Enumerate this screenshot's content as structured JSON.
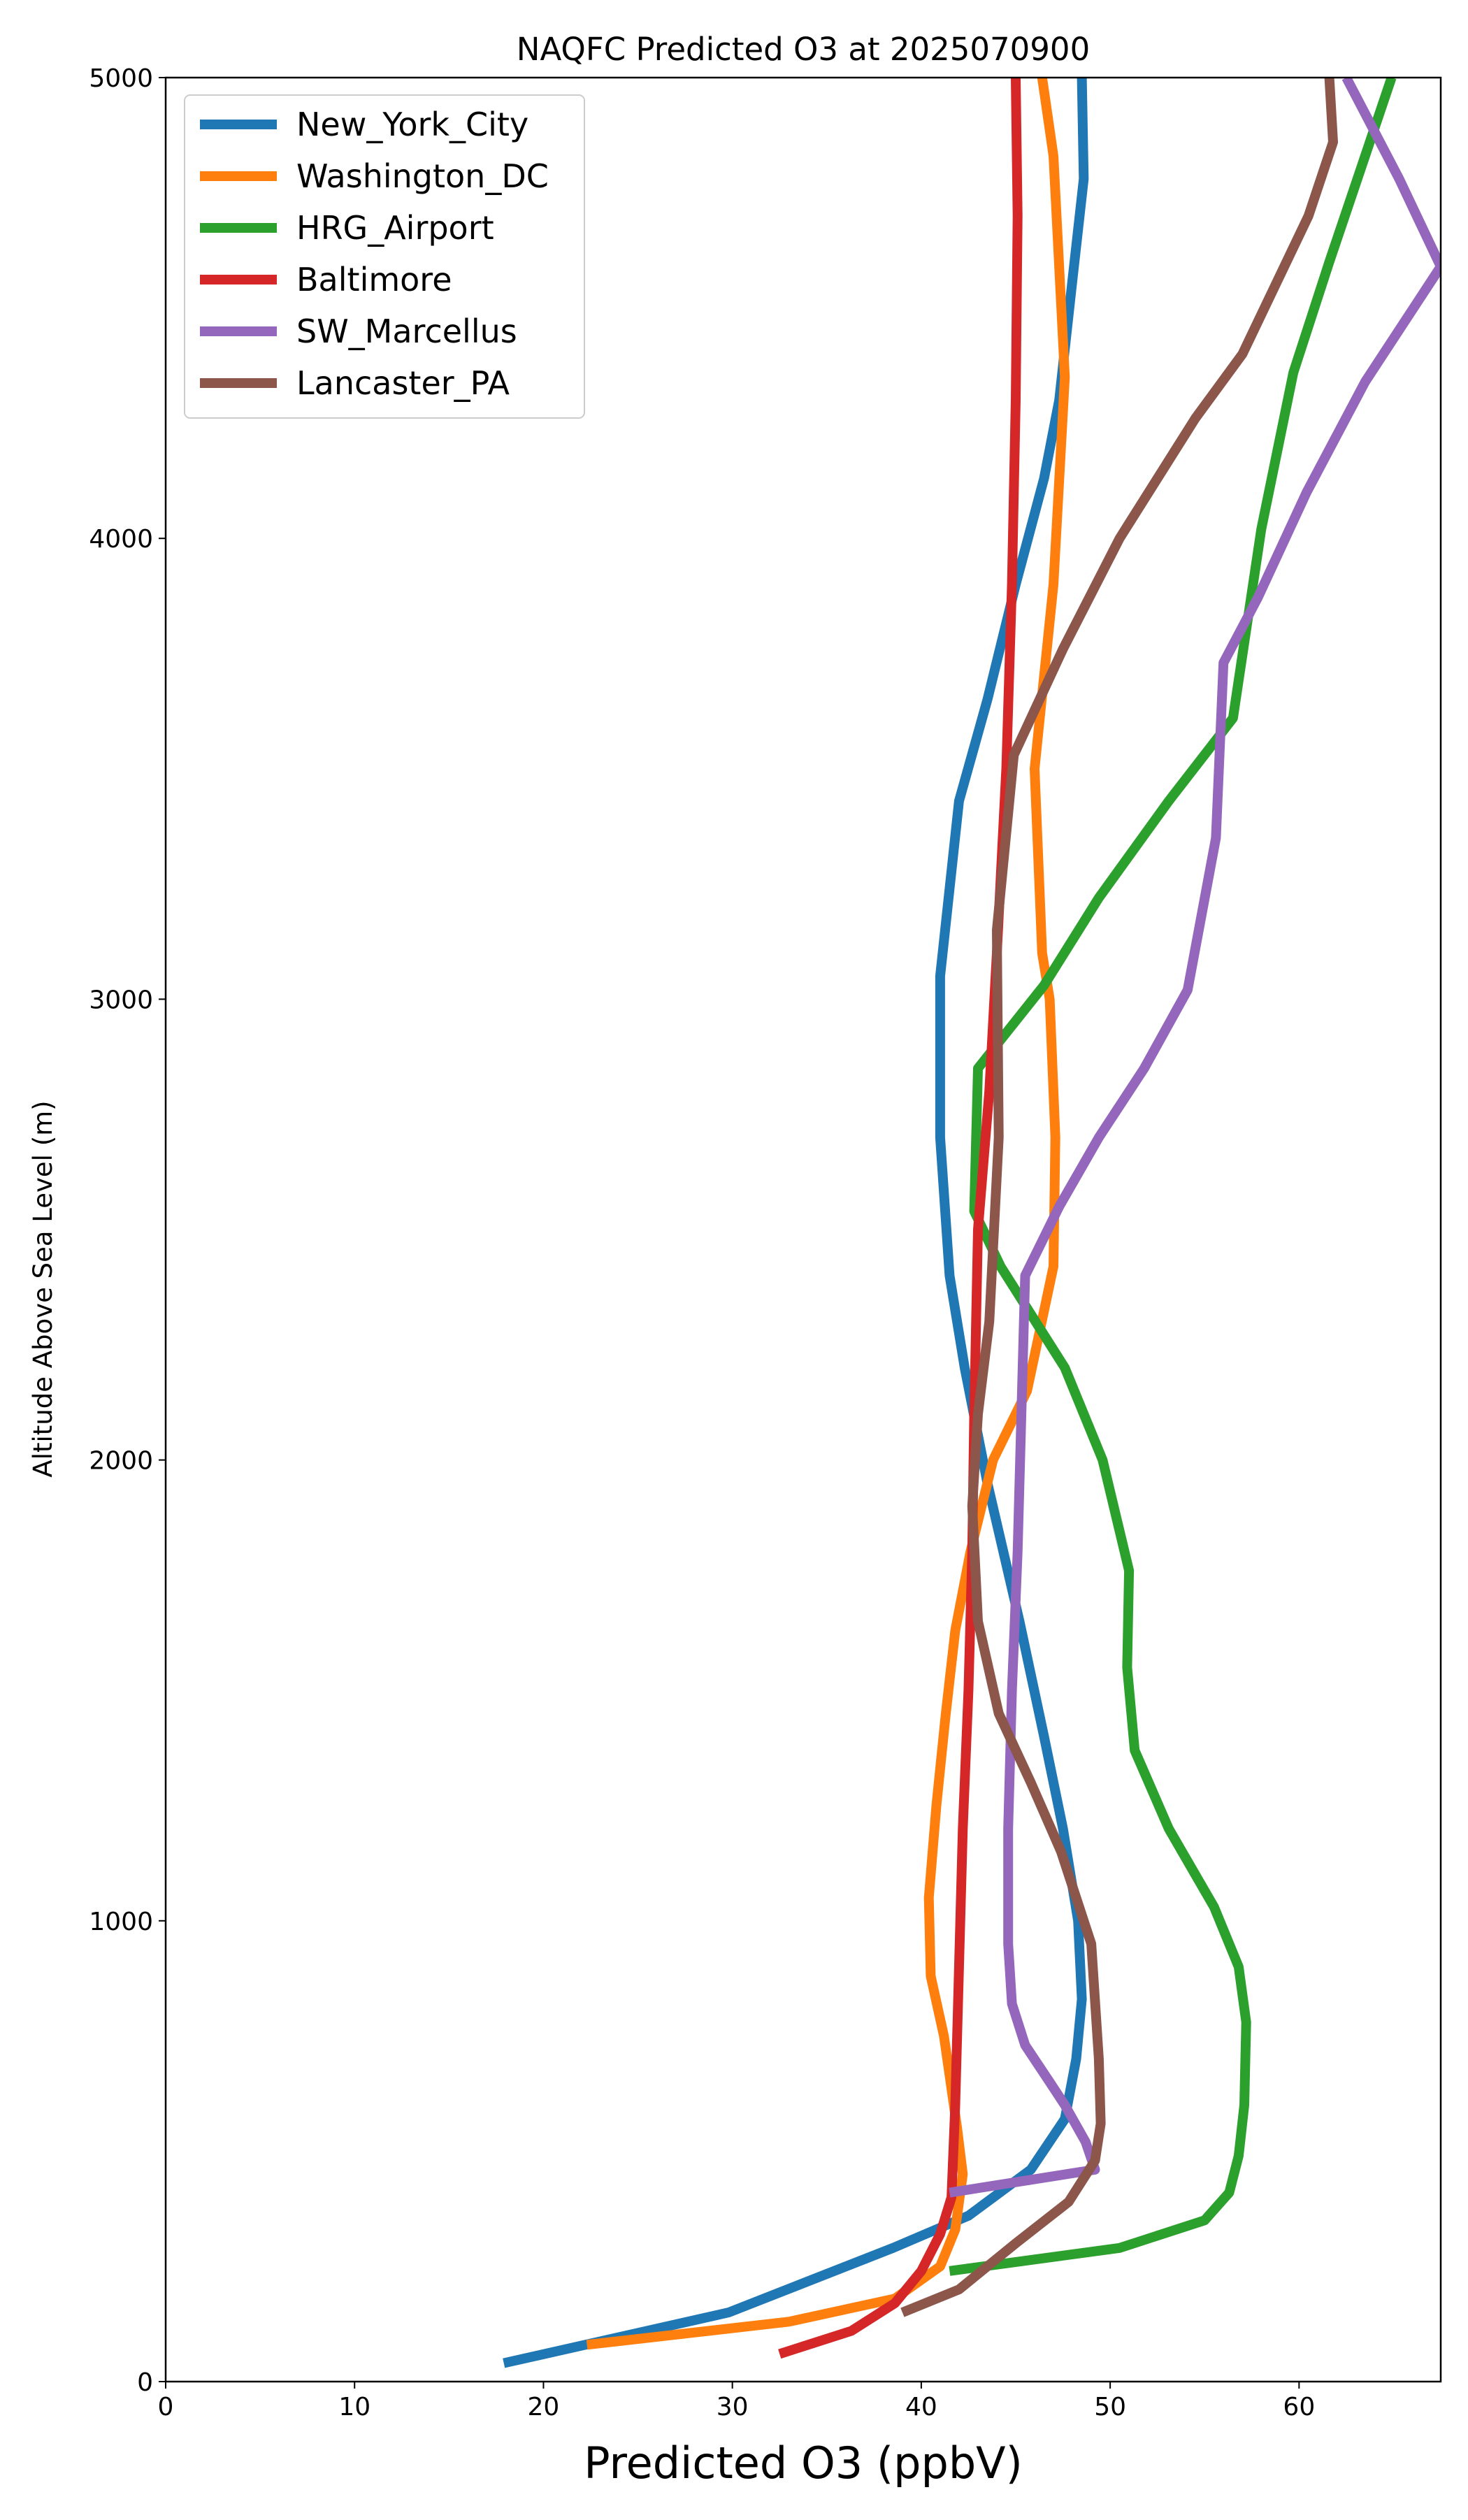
{
  "chart_data": {
    "type": "line",
    "title": "NAQFC Predicted O3 at 2025070900",
    "xlabel": "Predicted O3 (ppbV)",
    "ylabel": "Altitude Above Sea Level (m)",
    "xlim": [
      0,
      67.5
    ],
    "ylim": [
      0,
      5000
    ],
    "xticks": [
      0,
      10,
      20,
      30,
      40,
      50,
      60
    ],
    "yticks": [
      0,
      1000,
      2000,
      3000,
      4000,
      5000
    ],
    "grid": false,
    "legend_position": "upper-left",
    "series": [
      {
        "name": "New_York_City",
        "color": "#1f77b4",
        "points": [
          [
            17.9,
            40
          ],
          [
            29.8,
            150
          ],
          [
            38.5,
            290
          ],
          [
            42.5,
            360
          ],
          [
            45.8,
            460
          ],
          [
            47.6,
            570
          ],
          [
            48.2,
            700
          ],
          [
            48.5,
            830
          ],
          [
            48.3,
            1000
          ],
          [
            47.5,
            1200
          ],
          [
            46.5,
            1400
          ],
          [
            45.2,
            1650
          ],
          [
            43.5,
            1950
          ],
          [
            42.3,
            2200
          ],
          [
            41.5,
            2400
          ],
          [
            41.0,
            2700
          ],
          [
            41.0,
            3050
          ],
          [
            42.0,
            3430
          ],
          [
            43.5,
            3650
          ],
          [
            45.0,
            3900
          ],
          [
            46.5,
            4130
          ],
          [
            47.3,
            4300
          ],
          [
            48.0,
            4560
          ],
          [
            48.6,
            4780
          ],
          [
            48.5,
            5000
          ]
        ]
      },
      {
        "name": "Washington_DC",
        "color": "#ff7f0e",
        "points": [
          [
            22.3,
            80
          ],
          [
            33.0,
            130
          ],
          [
            38.6,
            180
          ],
          [
            41.0,
            250
          ],
          [
            41.8,
            330
          ],
          [
            42.2,
            450
          ],
          [
            41.9,
            550
          ],
          [
            41.2,
            750
          ],
          [
            40.5,
            880
          ],
          [
            40.4,
            1050
          ],
          [
            40.8,
            1250
          ],
          [
            41.3,
            1450
          ],
          [
            41.8,
            1630
          ],
          [
            42.6,
            1800
          ],
          [
            43.8,
            2000
          ],
          [
            45.6,
            2150
          ],
          [
            47.0,
            2420
          ],
          [
            47.1,
            2700
          ],
          [
            46.8,
            3000
          ],
          [
            46.4,
            3100
          ],
          [
            46.0,
            3500
          ],
          [
            47.0,
            3900
          ],
          [
            47.6,
            4350
          ],
          [
            47.0,
            4830
          ],
          [
            46.4,
            5000
          ]
        ]
      },
      {
        "name": "HRG_Airport",
        "color": "#2ca02c",
        "points": [
          [
            41.5,
            240
          ],
          [
            50.5,
            290
          ],
          [
            55.0,
            350
          ],
          [
            56.3,
            410
          ],
          [
            56.8,
            490
          ],
          [
            57.1,
            600
          ],
          [
            57.2,
            780
          ],
          [
            56.8,
            900
          ],
          [
            55.5,
            1030
          ],
          [
            53.1,
            1200
          ],
          [
            51.3,
            1370
          ],
          [
            50.9,
            1550
          ],
          [
            51.0,
            1760
          ],
          [
            49.6,
            2000
          ],
          [
            47.6,
            2200
          ],
          [
            44.2,
            2420
          ],
          [
            42.8,
            2540
          ],
          [
            43.0,
            2850
          ],
          [
            46.5,
            3030
          ],
          [
            49.4,
            3220
          ],
          [
            53.1,
            3430
          ],
          [
            56.5,
            3610
          ],
          [
            58.0,
            4020
          ],
          [
            59.7,
            4360
          ],
          [
            61.6,
            4600
          ],
          [
            64.9,
            5000
          ]
        ]
      },
      {
        "name": "Baltimore",
        "color": "#d62728",
        "points": [
          [
            32.5,
            60
          ],
          [
            36.3,
            110
          ],
          [
            38.6,
            170
          ],
          [
            40.0,
            240
          ],
          [
            41.0,
            320
          ],
          [
            41.6,
            400
          ],
          [
            41.8,
            600
          ],
          [
            42.0,
            900
          ],
          [
            42.2,
            1200
          ],
          [
            42.5,
            1500
          ],
          [
            42.7,
            1800
          ],
          [
            42.8,
            2100
          ],
          [
            43.0,
            2500
          ],
          [
            43.6,
            2800
          ],
          [
            44.0,
            3100
          ],
          [
            44.5,
            3500
          ],
          [
            44.8,
            3900
          ],
          [
            45.0,
            4300
          ],
          [
            45.1,
            4700
          ],
          [
            45.0,
            5000
          ]
        ]
      },
      {
        "name": "SW_Marcellus",
        "color": "#9467bd",
        "points": [
          [
            41.5,
            410
          ],
          [
            49.2,
            460
          ],
          [
            48.7,
            520
          ],
          [
            47.6,
            600
          ],
          [
            46.8,
            650
          ],
          [
            45.5,
            730
          ],
          [
            44.8,
            820
          ],
          [
            44.6,
            950
          ],
          [
            44.6,
            1200
          ],
          [
            44.8,
            1500
          ],
          [
            45.1,
            1800
          ],
          [
            45.3,
            2100
          ],
          [
            45.5,
            2400
          ],
          [
            47.3,
            2550
          ],
          [
            49.4,
            2700
          ],
          [
            51.8,
            2850
          ],
          [
            54.1,
            3020
          ],
          [
            55.6,
            3350
          ],
          [
            56.0,
            3730
          ],
          [
            57.8,
            3870
          ],
          [
            60.4,
            4100
          ],
          [
            63.5,
            4340
          ],
          [
            67.5,
            4590
          ],
          [
            65.3,
            4780
          ],
          [
            62.5,
            5000
          ]
        ]
      },
      {
        "name": "Lancaster_PA",
        "color": "#8c564b",
        "points": [
          [
            39.0,
            150
          ],
          [
            42.0,
            200
          ],
          [
            45.0,
            300
          ],
          [
            47.8,
            390
          ],
          [
            49.2,
            480
          ],
          [
            49.5,
            560
          ],
          [
            49.4,
            700
          ],
          [
            49.0,
            950
          ],
          [
            47.4,
            1150
          ],
          [
            45.8,
            1300
          ],
          [
            44.1,
            1450
          ],
          [
            43.0,
            1650
          ],
          [
            42.7,
            1900
          ],
          [
            43.0,
            2100
          ],
          [
            43.6,
            2300
          ],
          [
            44.1,
            2700
          ],
          [
            44.0,
            3150
          ],
          [
            44.9,
            3530
          ],
          [
            47.5,
            3760
          ],
          [
            50.5,
            4000
          ],
          [
            54.5,
            4260
          ],
          [
            57.0,
            4400
          ],
          [
            60.5,
            4700
          ],
          [
            61.8,
            4860
          ],
          [
            61.6,
            5000
          ]
        ]
      }
    ]
  }
}
